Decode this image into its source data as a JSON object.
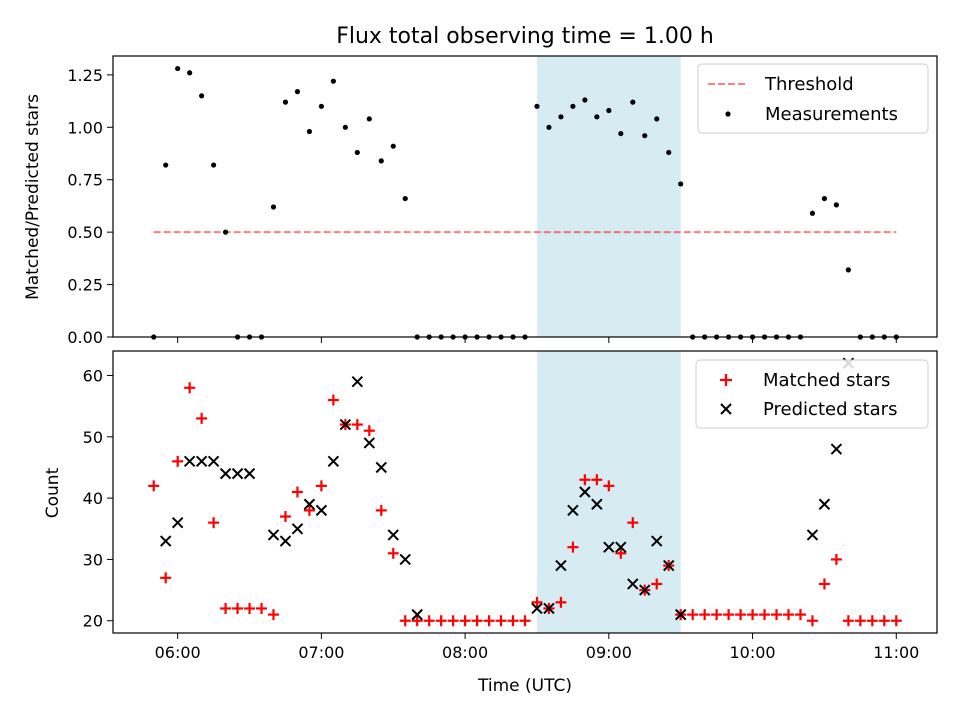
{
  "colors": {
    "highlight": "#add8e6",
    "threshold": "#ff0000",
    "matched": "#ff0000",
    "predicted": "#000000",
    "measurement": "#000000"
  },
  "chart_data": [
    {
      "type": "scatter",
      "title": "Flux total observing time = 1.00 h",
      "xlabel": "",
      "ylabel": "Matched/Predicted stars",
      "xlim": [
        "05:33",
        "11:17"
      ],
      "ylim": [
        0,
        1.34
      ],
      "yticks": [
        0.0,
        0.25,
        0.5,
        0.75,
        1.0,
        1.25
      ],
      "ytick_labels": [
        "0.00",
        "0.25",
        "0.50",
        "0.75",
        "1.00",
        "1.25"
      ],
      "xticks": [
        "06:00",
        "07:00",
        "08:00",
        "09:00",
        "10:00",
        "11:00"
      ],
      "legend_position": "top-right",
      "highlight_span": [
        "08:30",
        "09:30"
      ],
      "threshold": {
        "name": "Threshold",
        "x": [
          "05:50",
          "11:00"
        ],
        "y": [
          0.5,
          0.5
        ]
      },
      "series": [
        {
          "name": "Measurements",
          "x": [
            "05:50",
            "05:55",
            "06:00",
            "06:05",
            "06:10",
            "06:15",
            "06:20",
            "06:25",
            "06:30",
            "06:35",
            "06:40",
            "06:45",
            "06:50",
            "06:55",
            "07:00",
            "07:05",
            "07:10",
            "07:15",
            "07:20",
            "07:25",
            "07:30",
            "07:35",
            "07:40",
            "07:45",
            "07:50",
            "07:55",
            "08:00",
            "08:05",
            "08:10",
            "08:15",
            "08:20",
            "08:25",
            "08:30",
            "08:35",
            "08:40",
            "08:45",
            "08:50",
            "08:55",
            "09:00",
            "09:05",
            "09:10",
            "09:15",
            "09:20",
            "09:25",
            "09:30",
            "09:35",
            "09:40",
            "09:45",
            "09:50",
            "09:55",
            "10:00",
            "10:05",
            "10:10",
            "10:15",
            "10:20",
            "10:25",
            "10:30",
            "10:35",
            "10:40",
            "10:45",
            "10:50",
            "10:55",
            "11:00"
          ],
          "y": [
            0.0,
            0.82,
            1.28,
            1.26,
            1.15,
            0.82,
            0.5,
            0.0,
            0.0,
            0.0,
            0.62,
            1.12,
            1.17,
            0.98,
            1.1,
            1.22,
            1.0,
            0.88,
            1.04,
            0.84,
            0.91,
            0.66,
            0.0,
            0.0,
            0.0,
            0.0,
            0.0,
            0.0,
            0.0,
            0.0,
            0.0,
            0.0,
            1.1,
            1.0,
            1.05,
            1.1,
            1.13,
            1.05,
            1.08,
            0.97,
            1.12,
            0.96,
            1.04,
            0.88,
            0.73,
            0.0,
            0.0,
            0.0,
            0.0,
            0.0,
            0.0,
            0.0,
            0.0,
            0.0,
            0.0,
            0.59,
            0.66,
            0.63,
            0.32,
            0.0,
            0.0,
            0.0,
            0.0
          ]
        }
      ]
    },
    {
      "type": "scatter",
      "title": "",
      "xlabel": "Time (UTC)",
      "ylabel": "Count",
      "xlim": [
        "05:33",
        "11:17"
      ],
      "ylim": [
        18,
        64
      ],
      "yticks": [
        20,
        30,
        40,
        50,
        60
      ],
      "ytick_labels": [
        "20",
        "30",
        "40",
        "50",
        "60"
      ],
      "xticks": [
        "06:00",
        "07:00",
        "08:00",
        "09:00",
        "10:00",
        "11:00"
      ],
      "legend_position": "top-right",
      "highlight_span": [
        "08:30",
        "09:30"
      ],
      "series": [
        {
          "name": "Matched stars",
          "x": [
            "05:50",
            "05:55",
            "06:00",
            "06:05",
            "06:10",
            "06:15",
            "06:20",
            "06:25",
            "06:30",
            "06:35",
            "06:40",
            "06:45",
            "06:50",
            "06:55",
            "07:00",
            "07:05",
            "07:10",
            "07:15",
            "07:20",
            "07:25",
            "07:30",
            "07:35",
            "07:40",
            "07:45",
            "07:50",
            "07:55",
            "08:00",
            "08:05",
            "08:10",
            "08:15",
            "08:20",
            "08:25",
            "08:30",
            "08:35",
            "08:40",
            "08:45",
            "08:50",
            "08:55",
            "09:00",
            "09:05",
            "09:10",
            "09:15",
            "09:20",
            "09:25",
            "09:30",
            "09:35",
            "09:40",
            "09:45",
            "09:50",
            "09:55",
            "10:00",
            "10:05",
            "10:10",
            "10:15",
            "10:20",
            "10:25",
            "10:30",
            "10:35",
            "10:40",
            "10:45",
            "10:50",
            "10:55",
            "11:00"
          ],
          "y": [
            42,
            27,
            46,
            58,
            53,
            36,
            22,
            22,
            22,
            22,
            21,
            37,
            41,
            38,
            42,
            56,
            52,
            52,
            51,
            38,
            31,
            20,
            20,
            20,
            20,
            20,
            20,
            20,
            20,
            20,
            20,
            20,
            23,
            22,
            23,
            32,
            43,
            43,
            42,
            31,
            36,
            25,
            26,
            29,
            21,
            21,
            21,
            21,
            21,
            21,
            21,
            21,
            21,
            21,
            21,
            20,
            26,
            30,
            20,
            20,
            20,
            20,
            20
          ]
        },
        {
          "name": "Predicted stars",
          "x": [
            "05:55",
            "06:00",
            "06:05",
            "06:10",
            "06:15",
            "06:20",
            "06:25",
            "06:30",
            "06:40",
            "06:45",
            "06:50",
            "06:55",
            "07:00",
            "07:05",
            "07:10",
            "07:15",
            "07:20",
            "07:25",
            "07:30",
            "07:35",
            "07:40",
            "08:30",
            "08:35",
            "08:40",
            "08:45",
            "08:50",
            "08:55",
            "09:00",
            "09:05",
            "09:10",
            "09:15",
            "09:20",
            "09:25",
            "09:30",
            "10:25",
            "10:30",
            "10:35",
            "10:40"
          ],
          "y": [
            33,
            36,
            46,
            46,
            46,
            44,
            44,
            44,
            34,
            33,
            35,
            39,
            38,
            46,
            52,
            59,
            49,
            45,
            34,
            30,
            21,
            22,
            22,
            29,
            38,
            41,
            39,
            32,
            32,
            26,
            25,
            33,
            29,
            21,
            34,
            39,
            48,
            62
          ]
        }
      ]
    }
  ]
}
